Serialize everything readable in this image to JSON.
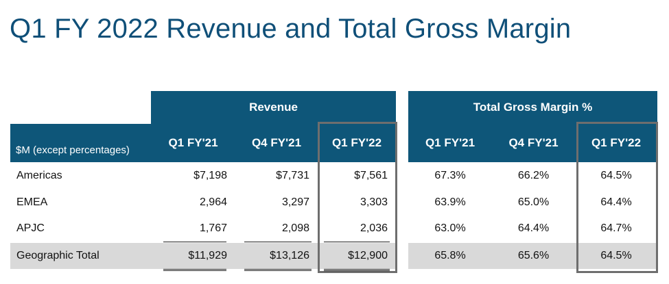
{
  "title": "Q1 FY 2022 Revenue and Total Gross Margin",
  "revenue_group": "Revenue",
  "margin_group": "Total Gross Margin %",
  "row_header": "$M (except percentages)",
  "revenue_columns": [
    "Q1 FY'21",
    "Q4 FY'21",
    "Q1 FY'22"
  ],
  "margin_columns": [
    "Q1 FY'21",
    "Q4 FY'21",
    "Q1 FY'22"
  ],
  "rows": [
    {
      "label": "Americas",
      "revenue": [
        "$7,198",
        "$7,731",
        "$7,561"
      ],
      "margin": [
        "67.3%",
        "66.2%",
        "64.5%"
      ]
    },
    {
      "label": "EMEA",
      "revenue": [
        "2,964",
        "3,297",
        "3,303"
      ],
      "margin": [
        "63.9%",
        "65.0%",
        "64.4%"
      ]
    },
    {
      "label": "APJC",
      "revenue": [
        "1,767",
        "2,098",
        "2,036"
      ],
      "margin": [
        "63.0%",
        "64.4%",
        "64.7%"
      ]
    },
    {
      "label": "Geographic Total",
      "revenue": [
        "$11,929",
        "$13,126",
        "$12,900"
      ],
      "margin": [
        "65.8%",
        "65.6%",
        "64.5%"
      ]
    }
  ],
  "colors": {
    "title": "#0f4f78",
    "header": "#0e5679",
    "total_band": "#d9d9d9",
    "highlight_border": "#6e6e6e"
  }
}
